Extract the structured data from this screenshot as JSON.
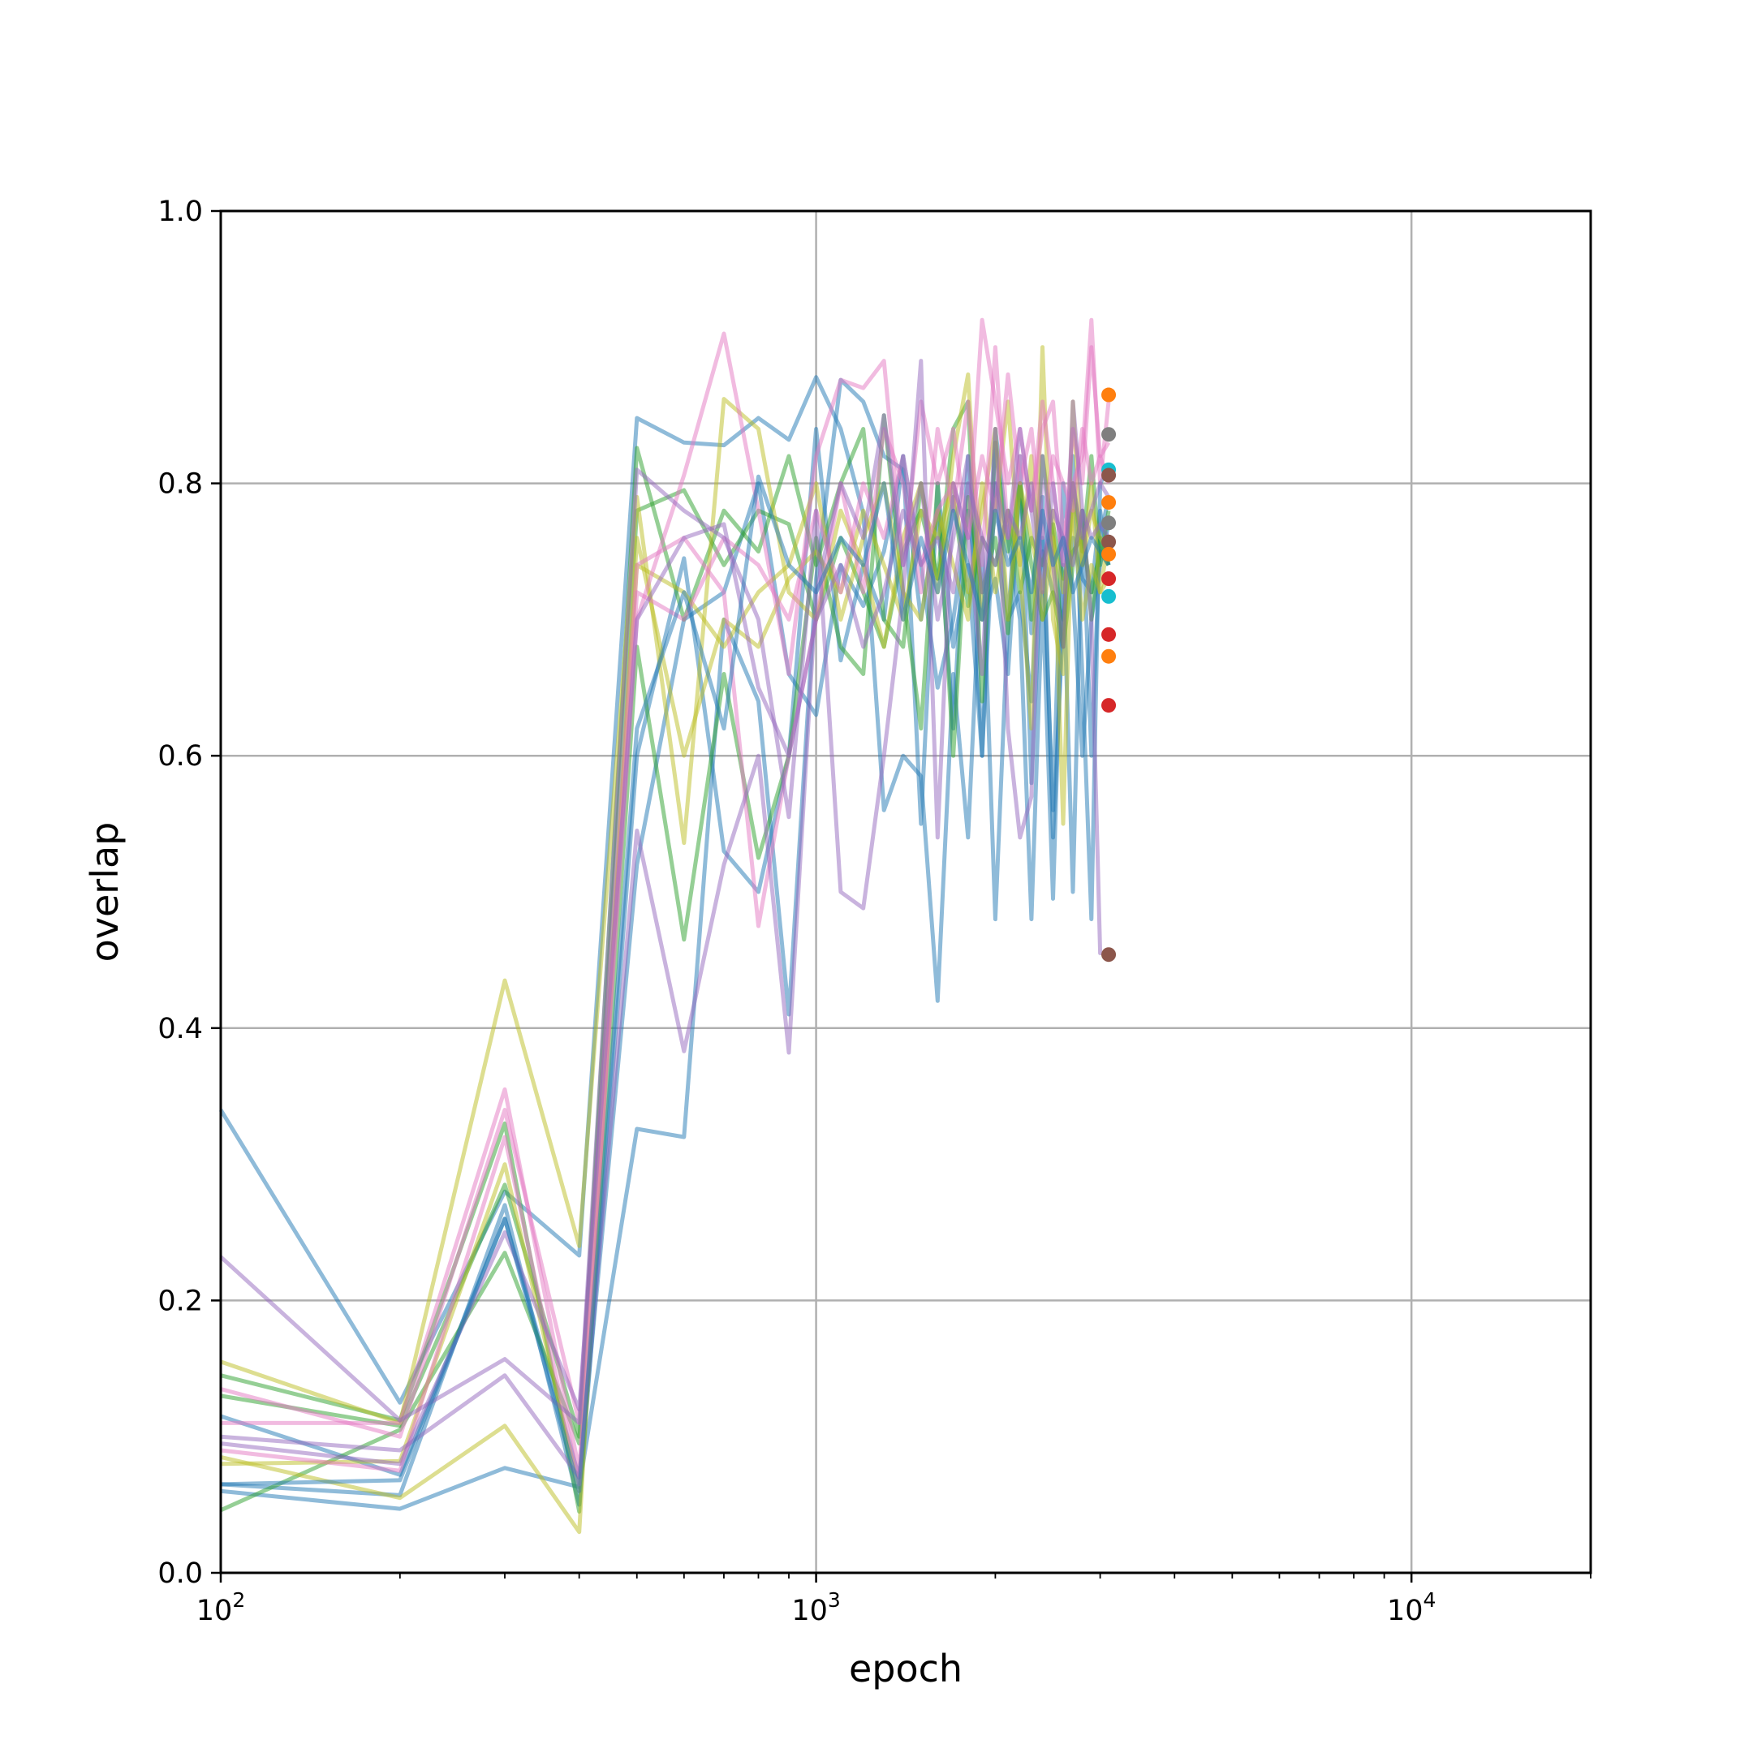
{
  "chart_data": {
    "type": "line",
    "title": "",
    "xlabel": "epoch",
    "ylabel": "overlap",
    "xscale": "log",
    "xlim": [
      100,
      20000
    ],
    "ylim": [
      0,
      1
    ],
    "grid": true,
    "legend": "none",
    "x_tick_labels": [
      {
        "value": 100,
        "base": "10",
        "exp": "2"
      },
      {
        "value": 1000,
        "base": "10",
        "exp": "3"
      },
      {
        "value": 10000,
        "base": "10",
        "exp": "4"
      }
    ],
    "y_tick_labels": [
      {
        "value": 0.0,
        "label": "0.0"
      },
      {
        "value": 0.2,
        "label": "0.2"
      },
      {
        "value": 0.4,
        "label": "0.4"
      },
      {
        "value": 0.6,
        "label": "0.6"
      },
      {
        "value": 0.8,
        "label": "0.8"
      },
      {
        "value": 1.0,
        "label": "1.0"
      }
    ],
    "x": [
      100,
      200,
      300,
      400,
      500,
      600,
      700,
      800,
      900,
      1000,
      1100,
      1200,
      1300,
      1400,
      1500,
      1600,
      1700,
      1800,
      1900,
      2000,
      2100,
      2200,
      2300,
      2400,
      2500,
      2600,
      2700,
      2800,
      2900,
      3000,
      3100
    ],
    "series": [
      {
        "color": "#1f77b4",
        "values": [
          0.34,
          0.125,
          0.28,
          0.233,
          0.848,
          0.83,
          0.828,
          0.848,
          0.832,
          0.878,
          0.84,
          0.778,
          0.56,
          0.6,
          0.585,
          0.42,
          0.66,
          0.54,
          0.76,
          0.48,
          0.7,
          0.72,
          0.64,
          0.79,
          0.54,
          0.7,
          0.82,
          0.66,
          0.48,
          0.8,
          0.81
        ]
      },
      {
        "color": "#1f77b4",
        "values": [
          0.06,
          0.047,
          0.077,
          0.063,
          0.326,
          0.32,
          0.7,
          0.64,
          0.41,
          0.73,
          0.876,
          0.86,
          0.82,
          0.81,
          0.7,
          0.78,
          0.62,
          0.82,
          0.6,
          0.84,
          0.76,
          0.7,
          0.48,
          0.72,
          0.495,
          0.74,
          0.5,
          0.78,
          0.6,
          0.76,
          0.79
        ]
      },
      {
        "color": "#1f77b4",
        "values": [
          0.065,
          0.057,
          0.27,
          0.05,
          0.6,
          0.745,
          0.53,
          0.5,
          0.6,
          0.84,
          0.67,
          0.74,
          0.7,
          0.82,
          0.55,
          0.8,
          0.68,
          0.74,
          0.6,
          0.8,
          0.7,
          0.82,
          0.58,
          0.76,
          0.56,
          0.8,
          0.72,
          0.6,
          0.7,
          0.74,
          0.77
        ]
      },
      {
        "color": "#1f77b4",
        "values": [
          0.115,
          0.072,
          0.26,
          0.07,
          0.52,
          0.7,
          0.72,
          0.8,
          0.66,
          0.63,
          0.74,
          0.71,
          0.75,
          0.82,
          0.74,
          0.65,
          0.7,
          0.78,
          0.7,
          0.73,
          0.66,
          0.8,
          0.69,
          0.75,
          0.72,
          0.7,
          0.76,
          0.73,
          0.72,
          0.78,
          0.74
        ]
      },
      {
        "color": "#2ca02c",
        "values": [
          0.046,
          0.105,
          0.235,
          0.095,
          0.826,
          0.7,
          0.78,
          0.75,
          0.82,
          0.74,
          0.8,
          0.84,
          0.7,
          0.68,
          0.8,
          0.73,
          0.84,
          0.86,
          0.64,
          0.83,
          0.75,
          0.8,
          0.7,
          0.82,
          0.76,
          0.68,
          0.8,
          0.75,
          0.82,
          0.74,
          0.78
        ]
      },
      {
        "color": "#2ca02c",
        "values": [
          0.145,
          0.112,
          0.33,
          0.045,
          0.68,
          0.465,
          0.66,
          0.525,
          0.6,
          0.76,
          0.68,
          0.66,
          0.85,
          0.72,
          0.62,
          0.8,
          0.6,
          0.79,
          0.72,
          0.76,
          0.69,
          0.8,
          0.74,
          0.7,
          0.72,
          0.68,
          0.74,
          0.78,
          0.7,
          0.76,
          0.74
        ]
      },
      {
        "color": "#2ca02c",
        "values": [
          0.13,
          0.108,
          0.285,
          0.1,
          0.78,
          0.795,
          0.74,
          0.78,
          0.77,
          0.7,
          0.76,
          0.72,
          0.68,
          0.75,
          0.78,
          0.73,
          0.79,
          0.71,
          0.76,
          0.74,
          0.78,
          0.72,
          0.76,
          0.74,
          0.77,
          0.73,
          0.75,
          0.76,
          0.72,
          0.75,
          0.74
        ]
      },
      {
        "color": "#bcbd22",
        "values": [
          0.155,
          0.11,
          0.435,
          0.24,
          0.79,
          0.536,
          0.862,
          0.84,
          0.72,
          0.7,
          0.78,
          0.74,
          0.68,
          0.76,
          0.8,
          0.72,
          0.82,
          0.88,
          0.7,
          0.78,
          0.86,
          0.74,
          0.62,
          0.9,
          0.7,
          0.66,
          0.86,
          0.74,
          0.8,
          0.72,
          0.76
        ]
      },
      {
        "color": "#bcbd22",
        "values": [
          0.085,
          0.055,
          0.108,
          0.03,
          0.76,
          0.6,
          0.7,
          0.68,
          0.73,
          0.75,
          0.72,
          0.78,
          0.74,
          0.7,
          0.78,
          0.76,
          0.8,
          0.72,
          0.78,
          0.84,
          0.7,
          0.8,
          0.76,
          0.72,
          0.78,
          0.55,
          0.8,
          0.74,
          0.78,
          0.76,
          0.75
        ]
      },
      {
        "color": "#bcbd22",
        "values": [
          0.08,
          0.082,
          0.3,
          0.06,
          0.74,
          0.72,
          0.68,
          0.72,
          0.74,
          0.8,
          0.7,
          0.76,
          0.8,
          0.72,
          0.7,
          0.78,
          0.74,
          0.7,
          0.8,
          0.72,
          0.78,
          0.74,
          0.82,
          0.7,
          0.76,
          0.72,
          0.78,
          0.7,
          0.74,
          0.72,
          0.73
        ]
      },
      {
        "color": "#e377c2",
        "values": [
          0.11,
          0.11,
          0.355,
          0.075,
          0.7,
          0.806,
          0.91,
          0.78,
          0.66,
          0.82,
          0.876,
          0.87,
          0.89,
          0.74,
          0.86,
          0.8,
          0.84,
          0.76,
          0.92,
          0.86,
          0.8,
          0.84,
          0.78,
          0.86,
          0.8,
          0.74,
          0.84,
          0.8,
          0.9,
          0.82,
          0.83
        ]
      },
      {
        "color": "#e377c2",
        "values": [
          0.135,
          0.1,
          0.34,
          0.11,
          0.74,
          0.76,
          0.72,
          0.475,
          0.6,
          0.7,
          0.8,
          0.72,
          0.84,
          0.8,
          0.72,
          0.84,
          0.78,
          0.86,
          0.74,
          0.9,
          0.76,
          0.82,
          0.78,
          0.84,
          0.86,
          0.76,
          0.8,
          0.82,
          0.92,
          0.8,
          0.86
        ]
      },
      {
        "color": "#e377c2",
        "values": [
          0.09,
          0.075,
          0.32,
          0.065,
          0.72,
          0.7,
          0.76,
          0.74,
          0.7,
          0.78,
          0.72,
          0.8,
          0.76,
          0.82,
          0.74,
          0.78,
          0.8,
          0.76,
          0.82,
          0.78,
          0.88,
          0.8,
          0.84,
          0.76,
          0.82,
          0.8,
          0.78,
          0.84,
          0.8,
          0.82,
          0.8
        ]
      },
      {
        "color": "#9467bd",
        "values": [
          0.232,
          0.112,
          0.157,
          0.11,
          0.81,
          0.78,
          0.76,
          0.7,
          0.555,
          0.78,
          0.5,
          0.488,
          0.6,
          0.72,
          0.89,
          0.54,
          0.8,
          0.76,
          0.66,
          0.84,
          0.62,
          0.54,
          0.57,
          0.82,
          0.74,
          0.68,
          0.86,
          0.78,
          0.7,
          0.455,
          0.455
        ]
      },
      {
        "color": "#9467bd",
        "values": [
          0.1,
          0.09,
          0.145,
          0.07,
          0.545,
          0.383,
          0.52,
          0.6,
          0.382,
          0.72,
          0.8,
          0.76,
          0.85,
          0.74,
          0.8,
          0.7,
          0.76,
          0.82,
          0.72,
          0.8,
          0.76,
          0.84,
          0.78,
          0.72,
          0.8,
          0.74,
          0.8,
          0.76,
          0.78,
          0.8,
          0.79
        ]
      },
      {
        "color": "#9467bd",
        "values": [
          0.095,
          0.08,
          0.25,
          0.12,
          0.7,
          0.76,
          0.77,
          0.65,
          0.6,
          0.7,
          0.74,
          0.68,
          0.72,
          0.78,
          0.74,
          0.76,
          0.72,
          0.8,
          0.76,
          0.74,
          0.78,
          0.76,
          0.8,
          0.74,
          0.78,
          0.76,
          0.74,
          0.78,
          0.76,
          0.77,
          0.76
        ]
      },
      {
        "color": "#1f77b4",
        "values": [
          0.065,
          0.068,
          0.26,
          0.06,
          0.62,
          0.72,
          0.62,
          0.805,
          0.74,
          0.72,
          0.76,
          0.74,
          0.8,
          0.7,
          0.76,
          0.72,
          0.78,
          0.74,
          0.7,
          0.78,
          0.74,
          0.76,
          0.72,
          0.78,
          0.74,
          0.76,
          0.72,
          0.74,
          0.76,
          0.75,
          0.74
        ]
      }
    ],
    "end_markers": [
      {
        "color": "#ff7f0e",
        "value": 0.865
      },
      {
        "color": "#7f7f7f",
        "value": 0.836
      },
      {
        "color": "#17becf",
        "value": 0.81
      },
      {
        "color": "#8c564b",
        "value": 0.806
      },
      {
        "color": "#ff7f0e",
        "value": 0.786
      },
      {
        "color": "#7f7f7f",
        "value": 0.771
      },
      {
        "color": "#8c564b",
        "value": 0.757
      },
      {
        "color": "#ff7f0e",
        "value": 0.748
      },
      {
        "color": "#d62728",
        "value": 0.73
      },
      {
        "color": "#17becf",
        "value": 0.717
      },
      {
        "color": "#d62728",
        "value": 0.689
      },
      {
        "color": "#ff7f0e",
        "value": 0.673
      },
      {
        "color": "#d62728",
        "value": 0.637
      },
      {
        "color": "#8c564b",
        "value": 0.454
      }
    ],
    "end_marker_x": 3100
  }
}
